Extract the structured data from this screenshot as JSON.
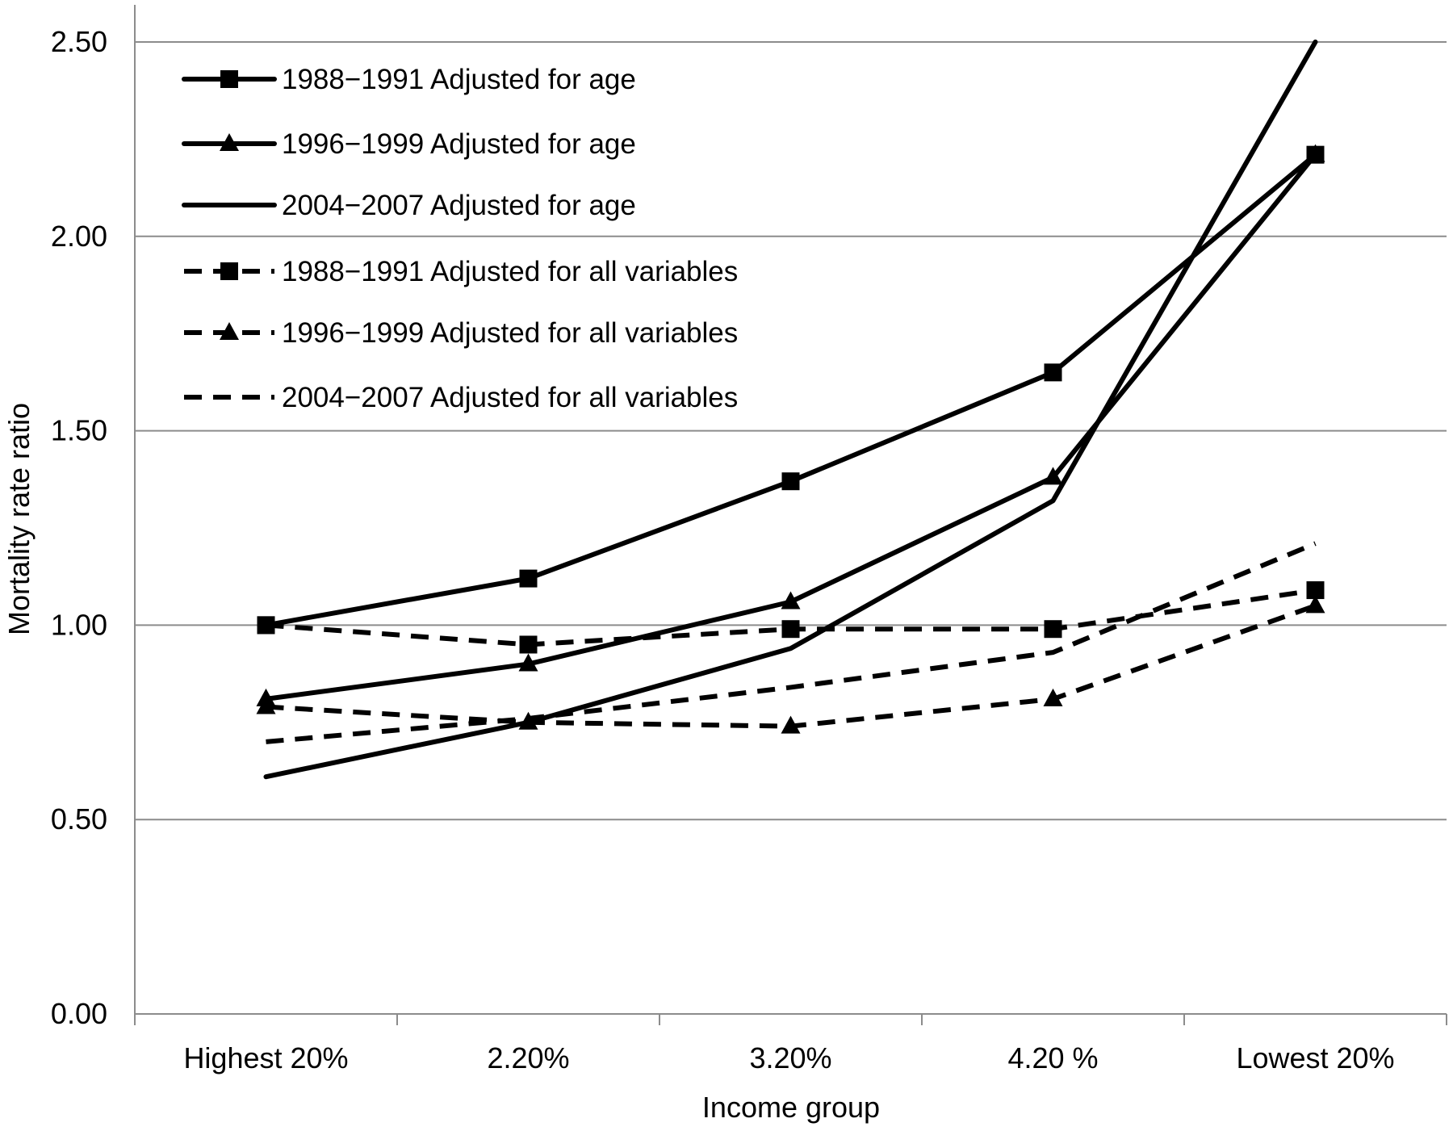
{
  "chart_data": {
    "type": "line",
    "title": "",
    "xlabel": "Income group",
    "ylabel": "Mortality rate ratio",
    "categories": [
      "Highest 20%",
      "2.20%",
      "3.20%",
      "4.20 %",
      "Lowest 20%"
    ],
    "ylim": [
      0,
      2.5
    ],
    "yticks": [
      "0.00",
      "0.50",
      "1.00",
      "1.50",
      "2.00",
      "2.50"
    ],
    "ytick_values": [
      0,
      0.5,
      1.0,
      1.5,
      2.0,
      2.5
    ],
    "grid": "horizontal",
    "legend_position": "top-left",
    "series": [
      {
        "name": "1988−1991 Adjusted for age",
        "values": [
          1.0,
          1.12,
          1.37,
          1.65,
          2.21
        ],
        "line": "solid",
        "marker": "square"
      },
      {
        "name": "1996−1999 Adjusted for age",
        "values": [
          0.81,
          0.9,
          1.06,
          1.38,
          2.21
        ],
        "line": "solid",
        "marker": "triangle"
      },
      {
        "name": "2004−2007 Adjusted for age",
        "values": [
          0.61,
          0.75,
          0.94,
          1.32,
          2.5
        ],
        "line": "solid",
        "marker": "none"
      },
      {
        "name": "1988−1991 Adjusted for all variables",
        "values": [
          1.0,
          0.95,
          0.99,
          0.99,
          1.09
        ],
        "line": "dashed",
        "marker": "square"
      },
      {
        "name": "1996−1999 Adjusted for all variables",
        "values": [
          0.79,
          0.75,
          0.74,
          0.81,
          1.05
        ],
        "line": "dashed",
        "marker": "triangle"
      },
      {
        "name": "2004−2007 Adjusted for all variables",
        "values": [
          0.7,
          0.76,
          0.84,
          0.93,
          1.21
        ],
        "line": "dashed",
        "marker": "none"
      }
    ]
  }
}
